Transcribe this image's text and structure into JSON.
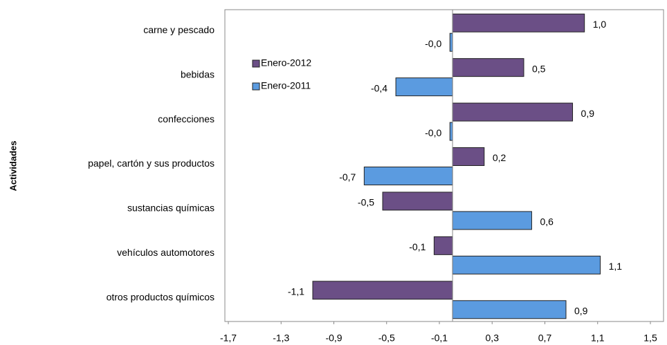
{
  "chart_data": {
    "type": "barh",
    "y_axis_label": "Actividades",
    "categories": [
      "carne y pescado",
      "bebidas",
      "confecciones",
      "papel, cartón y sus productos",
      "sustancias químicas",
      "vehículos automotores",
      "otros productos químicos"
    ],
    "series": [
      {
        "name": "Enero-2012",
        "color": "#6b4f86",
        "values": [
          1.0,
          0.54,
          0.91,
          0.24,
          -0.53,
          -0.14,
          -1.06
        ],
        "value_labels": [
          "1,0",
          "0,5",
          "0,9",
          "0,2",
          "-0,5",
          "-0,1",
          "-1,1"
        ]
      },
      {
        "name": "Enero-2011",
        "color": "#5b9be0",
        "values": [
          -0.02,
          -0.43,
          -0.02,
          -0.67,
          0.6,
          1.12,
          0.86
        ],
        "value_labels": [
          "-0,0",
          "-0,4",
          "-0,0",
          "-0,7",
          "0,6",
          "1,1",
          "0,9"
        ]
      }
    ],
    "xlim": [
      -1.7,
      1.5
    ],
    "xticks": [
      {
        "value": -1.7,
        "label": "-1,7"
      },
      {
        "value": -1.3,
        "label": "-1,3"
      },
      {
        "value": -0.9,
        "label": "-0,9"
      },
      {
        "value": -0.5,
        "label": "-0,5"
      },
      {
        "value": -0.1,
        "label": "-0,1"
      },
      {
        "value": 0.3,
        "label": "0,3"
      },
      {
        "value": 0.7,
        "label": "0,7"
      },
      {
        "value": 1.1,
        "label": "1,1"
      },
      {
        "value": 1.5,
        "label": "1,5"
      }
    ],
    "legend": "upper left"
  }
}
